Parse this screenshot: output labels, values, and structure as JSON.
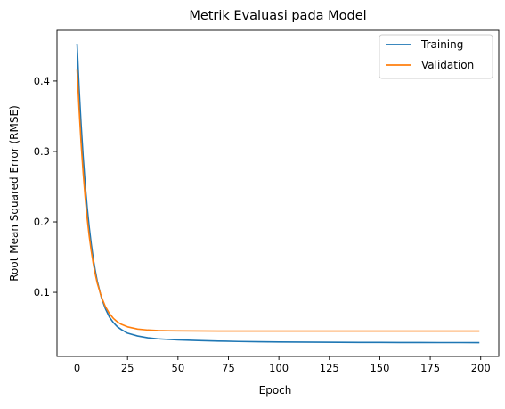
{
  "chart_data": {
    "type": "line",
    "title": "Metrik Evaluasi pada Model",
    "xlabel": "Epoch",
    "ylabel": "Root Mean Squared Error (RMSE)",
    "xlim": [
      -9.95,
      208.95
    ],
    "ylim": [
      0.009,
      0.472
    ],
    "x_ticks": [
      0,
      25,
      50,
      75,
      100,
      125,
      150,
      175,
      200
    ],
    "x_tick_labels": [
      "0",
      "25",
      "50",
      "75",
      "100",
      "125",
      "150",
      "175",
      "200"
    ],
    "y_ticks": [
      0.1,
      0.2,
      0.3,
      0.4
    ],
    "y_tick_labels": [
      "0.1",
      "0.2",
      "0.3",
      "0.4"
    ],
    "grid": false,
    "legend_position": "top-right",
    "x": [
      0,
      1,
      2,
      3,
      4,
      5,
      6,
      7,
      8,
      9,
      10,
      12,
      14,
      16,
      18,
      20,
      22,
      25,
      30,
      35,
      40,
      45,
      50,
      60,
      70,
      80,
      90,
      100,
      110,
      120,
      130,
      140,
      150,
      160,
      170,
      180,
      190,
      199
    ],
    "series": [
      {
        "name": "Training",
        "color": "#1f77b4",
        "values": [
          0.452,
          0.39,
          0.338,
          0.293,
          0.254,
          0.221,
          0.193,
          0.169,
          0.148,
          0.131,
          0.116,
          0.093,
          0.077,
          0.065,
          0.057,
          0.051,
          0.047,
          0.042,
          0.038,
          0.0355,
          0.034,
          0.0332,
          0.0325,
          0.0315,
          0.0308,
          0.0302,
          0.0298,
          0.0295,
          0.0293,
          0.0291,
          0.029,
          0.0289,
          0.0288,
          0.0287,
          0.0287,
          0.0286,
          0.0286,
          0.0285
        ]
      },
      {
        "name": "Validation",
        "color": "#ff7f0e",
        "values": [
          0.416,
          0.36,
          0.311,
          0.27,
          0.235,
          0.205,
          0.18,
          0.159,
          0.141,
          0.126,
          0.113,
          0.094,
          0.08,
          0.07,
          0.063,
          0.058,
          0.0545,
          0.051,
          0.0478,
          0.0465,
          0.0458,
          0.0455,
          0.0453,
          0.0451,
          0.045,
          0.045,
          0.045,
          0.045,
          0.045,
          0.045,
          0.045,
          0.045,
          0.045,
          0.045,
          0.045,
          0.045,
          0.045,
          0.045
        ]
      }
    ]
  }
}
